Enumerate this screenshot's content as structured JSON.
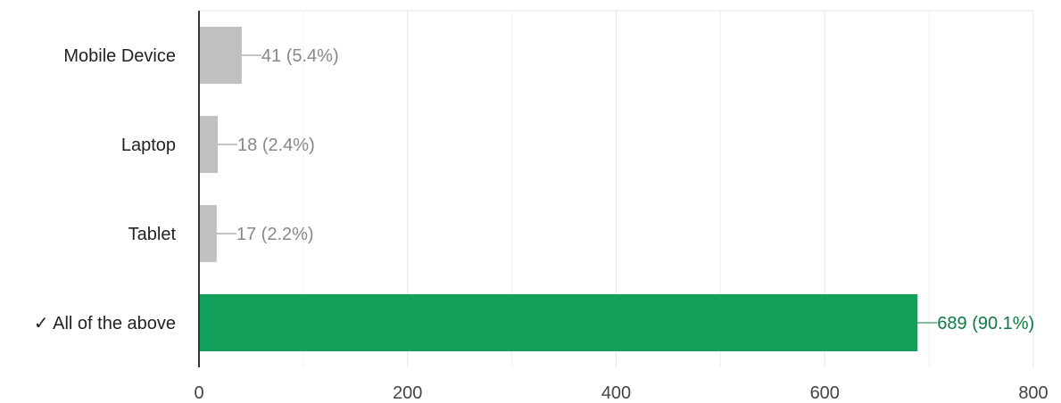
{
  "chart_data": {
    "type": "bar",
    "orientation": "horizontal",
    "categories": [
      "Mobile Device",
      "Laptop",
      "Tablet",
      "✓ All of the above"
    ],
    "values": [
      41,
      18,
      17,
      689
    ],
    "value_labels": [
      "41 (5.4%)",
      "18 (2.4%)",
      "17 (2.2%)",
      "689 (90.1%)"
    ],
    "correct_index": 3,
    "xlim": [
      0,
      800
    ],
    "xticks": [
      0,
      200,
      400,
      600,
      800
    ],
    "minor_gridlines": true,
    "grid": true,
    "legend": "none",
    "colors": {
      "bar_default": "#c0c0c0",
      "bar_correct": "#12a05a",
      "label_default": "#888888",
      "label_correct": "#0e7a42",
      "gridline": "#e6e6e6",
      "axis": "#333333"
    }
  }
}
